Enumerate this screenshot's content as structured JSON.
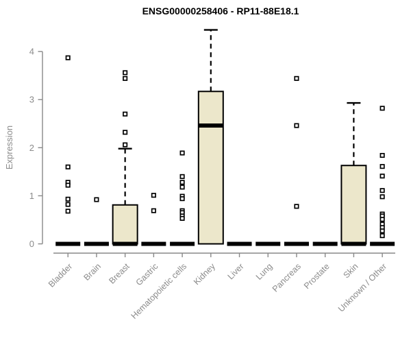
{
  "chart_data": {
    "type": "boxplot",
    "title": "ENSG00000258406 - RP11-88E18.1",
    "ylabel": "Expression",
    "xlabel": "",
    "ylim": [
      0,
      4.6
    ],
    "yticks": [
      0,
      1,
      2,
      3,
      4
    ],
    "grid": false,
    "legend": "none",
    "colors": {
      "box_fill": "#ECE7CB",
      "box_stroke": "#000000",
      "median": "#000000",
      "whisker": "#000000",
      "outlier_fill": "#ffffff",
      "outlier_stroke": "#000000",
      "axis": "#888888",
      "tick_label": "#8b8b8b",
      "title": "#000000"
    },
    "categories": [
      "Bladder",
      "Brain",
      "Breast",
      "Gastric",
      "Hematopoietic cells",
      "Kidney",
      "Liver",
      "Lung",
      "Pancreas",
      "Prostate",
      "Skin",
      "Unknown / Other"
    ],
    "boxes": [
      {
        "category": "Bladder",
        "whisker_low": 0,
        "q1": 0,
        "median": 0,
        "q3": 0,
        "whisker_high": 0,
        "outliers": [
          3.87,
          1.6,
          1.28,
          1.22,
          0.93,
          0.82,
          0.68
        ]
      },
      {
        "category": "Brain",
        "whisker_low": 0,
        "q1": 0,
        "median": 0,
        "q3": 0,
        "whisker_high": 0,
        "outliers": [
          0.92
        ]
      },
      {
        "category": "Breast",
        "whisker_low": 0,
        "q1": 0,
        "median": 0,
        "q3": 0.81,
        "whisker_high": 1.98,
        "outliers": [
          3.56,
          3.44,
          2.7,
          2.32,
          2.06
        ]
      },
      {
        "category": "Gastric",
        "whisker_low": 0,
        "q1": 0,
        "median": 0,
        "q3": 0,
        "whisker_high": 0,
        "outliers": [
          1.01,
          0.69
        ]
      },
      {
        "category": "Hematopoietic cells",
        "whisker_low": 0,
        "q1": 0,
        "median": 0,
        "q3": 0,
        "whisker_high": 0,
        "outliers": [
          1.89,
          1.4,
          1.28,
          1.18,
          0.99,
          0.94,
          0.69,
          0.65,
          0.58,
          0.53
        ]
      },
      {
        "category": "Kidney",
        "whisker_low": 0,
        "q1": 0,
        "median": 2.46,
        "q3": 3.17,
        "whisker_high": 4.45,
        "outliers": []
      },
      {
        "category": "Liver",
        "whisker_low": 0,
        "q1": 0,
        "median": 0,
        "q3": 0,
        "whisker_high": 0,
        "outliers": []
      },
      {
        "category": "Lung",
        "whisker_low": 0,
        "q1": 0,
        "median": 0,
        "q3": 0,
        "whisker_high": 0,
        "outliers": []
      },
      {
        "category": "Pancreas",
        "whisker_low": 0,
        "q1": 0,
        "median": 0,
        "q3": 0,
        "whisker_high": 0,
        "outliers": [
          3.44,
          2.46,
          0.78
        ]
      },
      {
        "category": "Prostate",
        "whisker_low": 0,
        "q1": 0,
        "median": 0,
        "q3": 0,
        "whisker_high": 0,
        "outliers": []
      },
      {
        "category": "Skin",
        "whisker_low": 0,
        "q1": 0,
        "median": 0,
        "q3": 1.63,
        "whisker_high": 2.93,
        "outliers": []
      },
      {
        "category": "Unknown / Other",
        "whisker_low": 0,
        "q1": 0,
        "median": 0,
        "q3": 0,
        "whisker_high": 0,
        "outliers": [
          2.82,
          1.84,
          1.61,
          1.41,
          1.11,
          0.98,
          0.62,
          0.58,
          0.51,
          0.41,
          0.34,
          0.27,
          0.17
        ]
      }
    ]
  }
}
